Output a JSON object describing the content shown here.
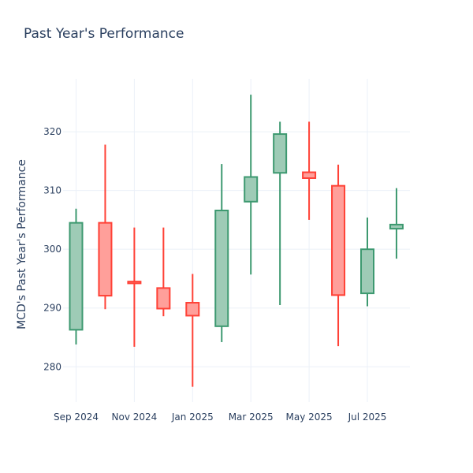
{
  "chart_data": {
    "type": "candlestick",
    "title": "Past Year's Performance",
    "ylabel": "MCD's Past Year's Performance",
    "xlabel": "",
    "ylim": [
      274,
      329
    ],
    "yticks": [
      280,
      290,
      300,
      310,
      320
    ],
    "x_ticks": [
      {
        "label": "Sep 2024",
        "index": 0
      },
      {
        "label": "Nov 2024",
        "index": 2
      },
      {
        "label": "Jan 2025",
        "index": 4
      },
      {
        "label": "Mar 2025",
        "index": 6
      },
      {
        "label": "May 2025",
        "index": 8
      },
      {
        "label": "Jul 2025",
        "index": 10
      }
    ],
    "grid": true,
    "increasing_color": "#3d9970",
    "increasing_fill": "#9ecbb6",
    "decreasing_color": "#ff4136",
    "decreasing_fill": "#ff9f9a",
    "candles": [
      {
        "month": "2024-09",
        "open": 286.3,
        "high": 306.9,
        "low": 283.8,
        "close": 304.5
      },
      {
        "month": "2024-10",
        "open": 304.5,
        "high": 317.8,
        "low": 289.8,
        "close": 292.1
      },
      {
        "month": "2024-11",
        "open": 294.5,
        "high": 303.7,
        "low": 283.4,
        "close": 294.2
      },
      {
        "month": "2024-12",
        "open": 293.4,
        "high": 303.7,
        "low": 288.6,
        "close": 289.9
      },
      {
        "month": "2025-01",
        "open": 290.9,
        "high": 295.8,
        "low": 276.6,
        "close": 288.7
      },
      {
        "month": "2025-02",
        "open": 286.9,
        "high": 314.5,
        "low": 284.2,
        "close": 306.6
      },
      {
        "month": "2025-03",
        "open": 308.1,
        "high": 326.3,
        "low": 295.7,
        "close": 312.3
      },
      {
        "month": "2025-04",
        "open": 313.0,
        "high": 321.7,
        "low": 290.5,
        "close": 319.6
      },
      {
        "month": "2025-05",
        "open": 313.1,
        "high": 321.7,
        "low": 305.0,
        "close": 312.1
      },
      {
        "month": "2025-06",
        "open": 310.8,
        "high": 314.4,
        "low": 283.5,
        "close": 292.2
      },
      {
        "month": "2025-07",
        "open": 292.5,
        "high": 305.4,
        "low": 290.3,
        "close": 300.0
      },
      {
        "month": "2025-08",
        "open": 303.5,
        "high": 310.4,
        "low": 298.4,
        "close": 304.2
      }
    ]
  }
}
